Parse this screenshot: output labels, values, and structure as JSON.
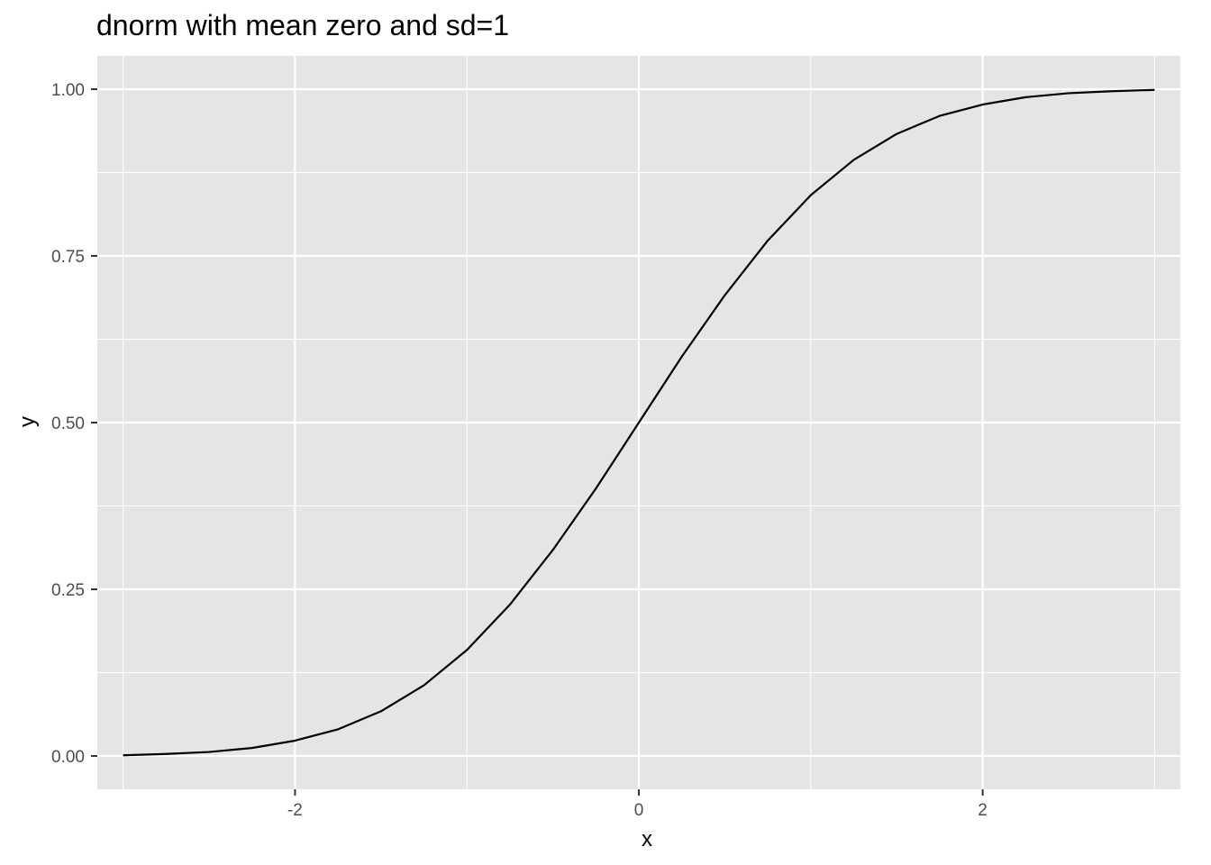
{
  "chart_data": {
    "type": "line",
    "title": "dnorm with mean zero and sd=1",
    "xlabel": "x",
    "ylabel": "y",
    "xlim": [
      -3.15,
      3.15
    ],
    "ylim": [
      -0.05,
      1.05
    ],
    "x_ticks": [
      -2,
      0,
      2
    ],
    "x_tick_labels": [
      "-2",
      "0",
      "2"
    ],
    "x_minor_ticks": [
      -3,
      -1,
      1,
      3
    ],
    "y_ticks": [
      0,
      0.25,
      0.5,
      0.75,
      1
    ],
    "y_tick_labels": [
      "0.00",
      "0.25",
      "0.50",
      "0.75",
      "1.00"
    ],
    "y_minor_ticks": [
      0.125,
      0.375,
      0.625,
      0.875
    ],
    "grid": true,
    "series": [
      {
        "x": [
          -3.0,
          -2.75,
          -2.5,
          -2.25,
          -2.0,
          -1.75,
          -1.5,
          -1.25,
          -1.0,
          -0.75,
          -0.5,
          -0.25,
          0.0,
          0.25,
          0.5,
          0.75,
          1.0,
          1.25,
          1.5,
          1.75,
          2.0,
          2.25,
          2.5,
          2.75,
          3.0
        ],
        "values": [
          0.001,
          0.003,
          0.006,
          0.012,
          0.023,
          0.04,
          0.067,
          0.106,
          0.159,
          0.227,
          0.309,
          0.401,
          0.5,
          0.599,
          0.691,
          0.773,
          0.841,
          0.894,
          0.933,
          0.96,
          0.977,
          0.988,
          0.994,
          0.997,
          0.999
        ]
      }
    ]
  },
  "colors": {
    "panel_background": "#E5E5E5",
    "grid": "#FFFFFF",
    "line": "#000000",
    "tick_label": "#4D4D4D",
    "tick_mark": "#333333"
  }
}
